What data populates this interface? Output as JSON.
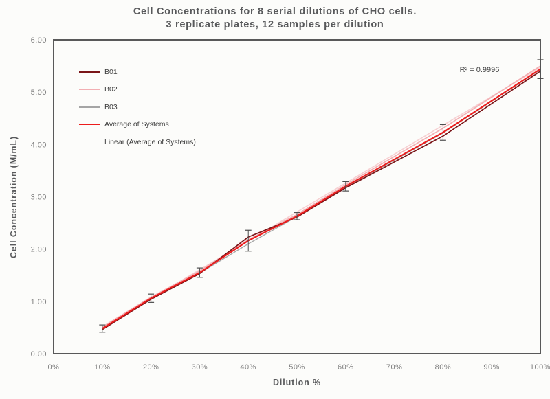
{
  "chart": {
    "title_line1": "Cell Concentrations for 8 serial dilutions of CHO cells.",
    "title_line2": "3 replicate plates, 12 samples per dilution",
    "xlabel": "Dilution %",
    "ylabel": "Cell Concentration (M/mL)",
    "r_squared": "R² = 0.9996"
  },
  "chart_data": {
    "type": "line",
    "title": "Cell Concentrations for 8 serial dilutions of CHO cells. 3 replicate plates, 12 samples per dilution",
    "xlabel": "Dilution %",
    "ylabel": "Cell Concentration (M/mL)",
    "xlim": [
      0,
      100
    ],
    "ylim": [
      0,
      6
    ],
    "grid": false,
    "legend_position": "top-left-inside",
    "x_tick_labels": [
      "0%",
      "10%",
      "20%",
      "30%",
      "40%",
      "50%",
      "60%",
      "70%",
      "80%",
      "90%",
      "100%"
    ],
    "x_tick_values": [
      0,
      10,
      20,
      30,
      40,
      50,
      60,
      70,
      80,
      90,
      100
    ],
    "y_tick_labels": [
      "0.00",
      "1.00",
      "2.00",
      "3.00",
      "4.00",
      "5.00",
      "6.00"
    ],
    "y_tick_values": [
      0,
      1,
      2,
      3,
      4,
      5,
      6
    ],
    "categories": [
      10,
      20,
      30,
      40,
      50,
      60,
      80,
      100
    ],
    "series": [
      {
        "name": "B03",
        "color": "#a5a5a5",
        "width": 1.4,
        "values": [
          0.47,
          1.05,
          1.54,
          2.1,
          2.62,
          3.18,
          4.22,
          5.43
        ]
      },
      {
        "name": "B02",
        "color": "#f2aeb2",
        "width": 1.7,
        "values": [
          0.51,
          1.08,
          1.58,
          2.18,
          2.66,
          3.23,
          4.31,
          5.5
        ]
      },
      {
        "name": "B01",
        "color": "#7a1518",
        "width": 1.7,
        "values": [
          0.46,
          1.04,
          1.53,
          2.23,
          2.61,
          3.17,
          4.16,
          5.4
        ]
      },
      {
        "name": "Average of Systems",
        "color": "#ec1c1c",
        "width": 2.1,
        "values": [
          0.48,
          1.06,
          1.55,
          2.16,
          2.63,
          3.2,
          4.23,
          5.44
        ]
      }
    ],
    "trendline": {
      "name": "Linear (Average of Systems)",
      "color": "#f6d0d2",
      "width": 1.6,
      "x": [
        10,
        100
      ],
      "values": [
        0.5,
        5.47
      ]
    },
    "error_bars": {
      "on_series": "Average of Systems",
      "color": "#4d4d4d",
      "cap_width": 9,
      "plus_minus": [
        0.07,
        0.08,
        0.09,
        0.2,
        0.07,
        0.09,
        0.15,
        0.18
      ]
    },
    "annotation": "R² = 0.9996",
    "legend": [
      {
        "label": "B01",
        "color": "#7a1518",
        "swatch": true
      },
      {
        "label": "B02",
        "color": "#f2aeb2",
        "swatch": true
      },
      {
        "label": "B03",
        "color": "#a5a5a5",
        "swatch": true
      },
      {
        "label": "Average of Systems",
        "color": "#ec1c1c",
        "swatch": true
      },
      {
        "label": "Linear (Average of Systems)",
        "color": "#f6d0d2",
        "swatch": false
      }
    ],
    "axis_color": "#595959",
    "tick_label_color": "#808080"
  }
}
